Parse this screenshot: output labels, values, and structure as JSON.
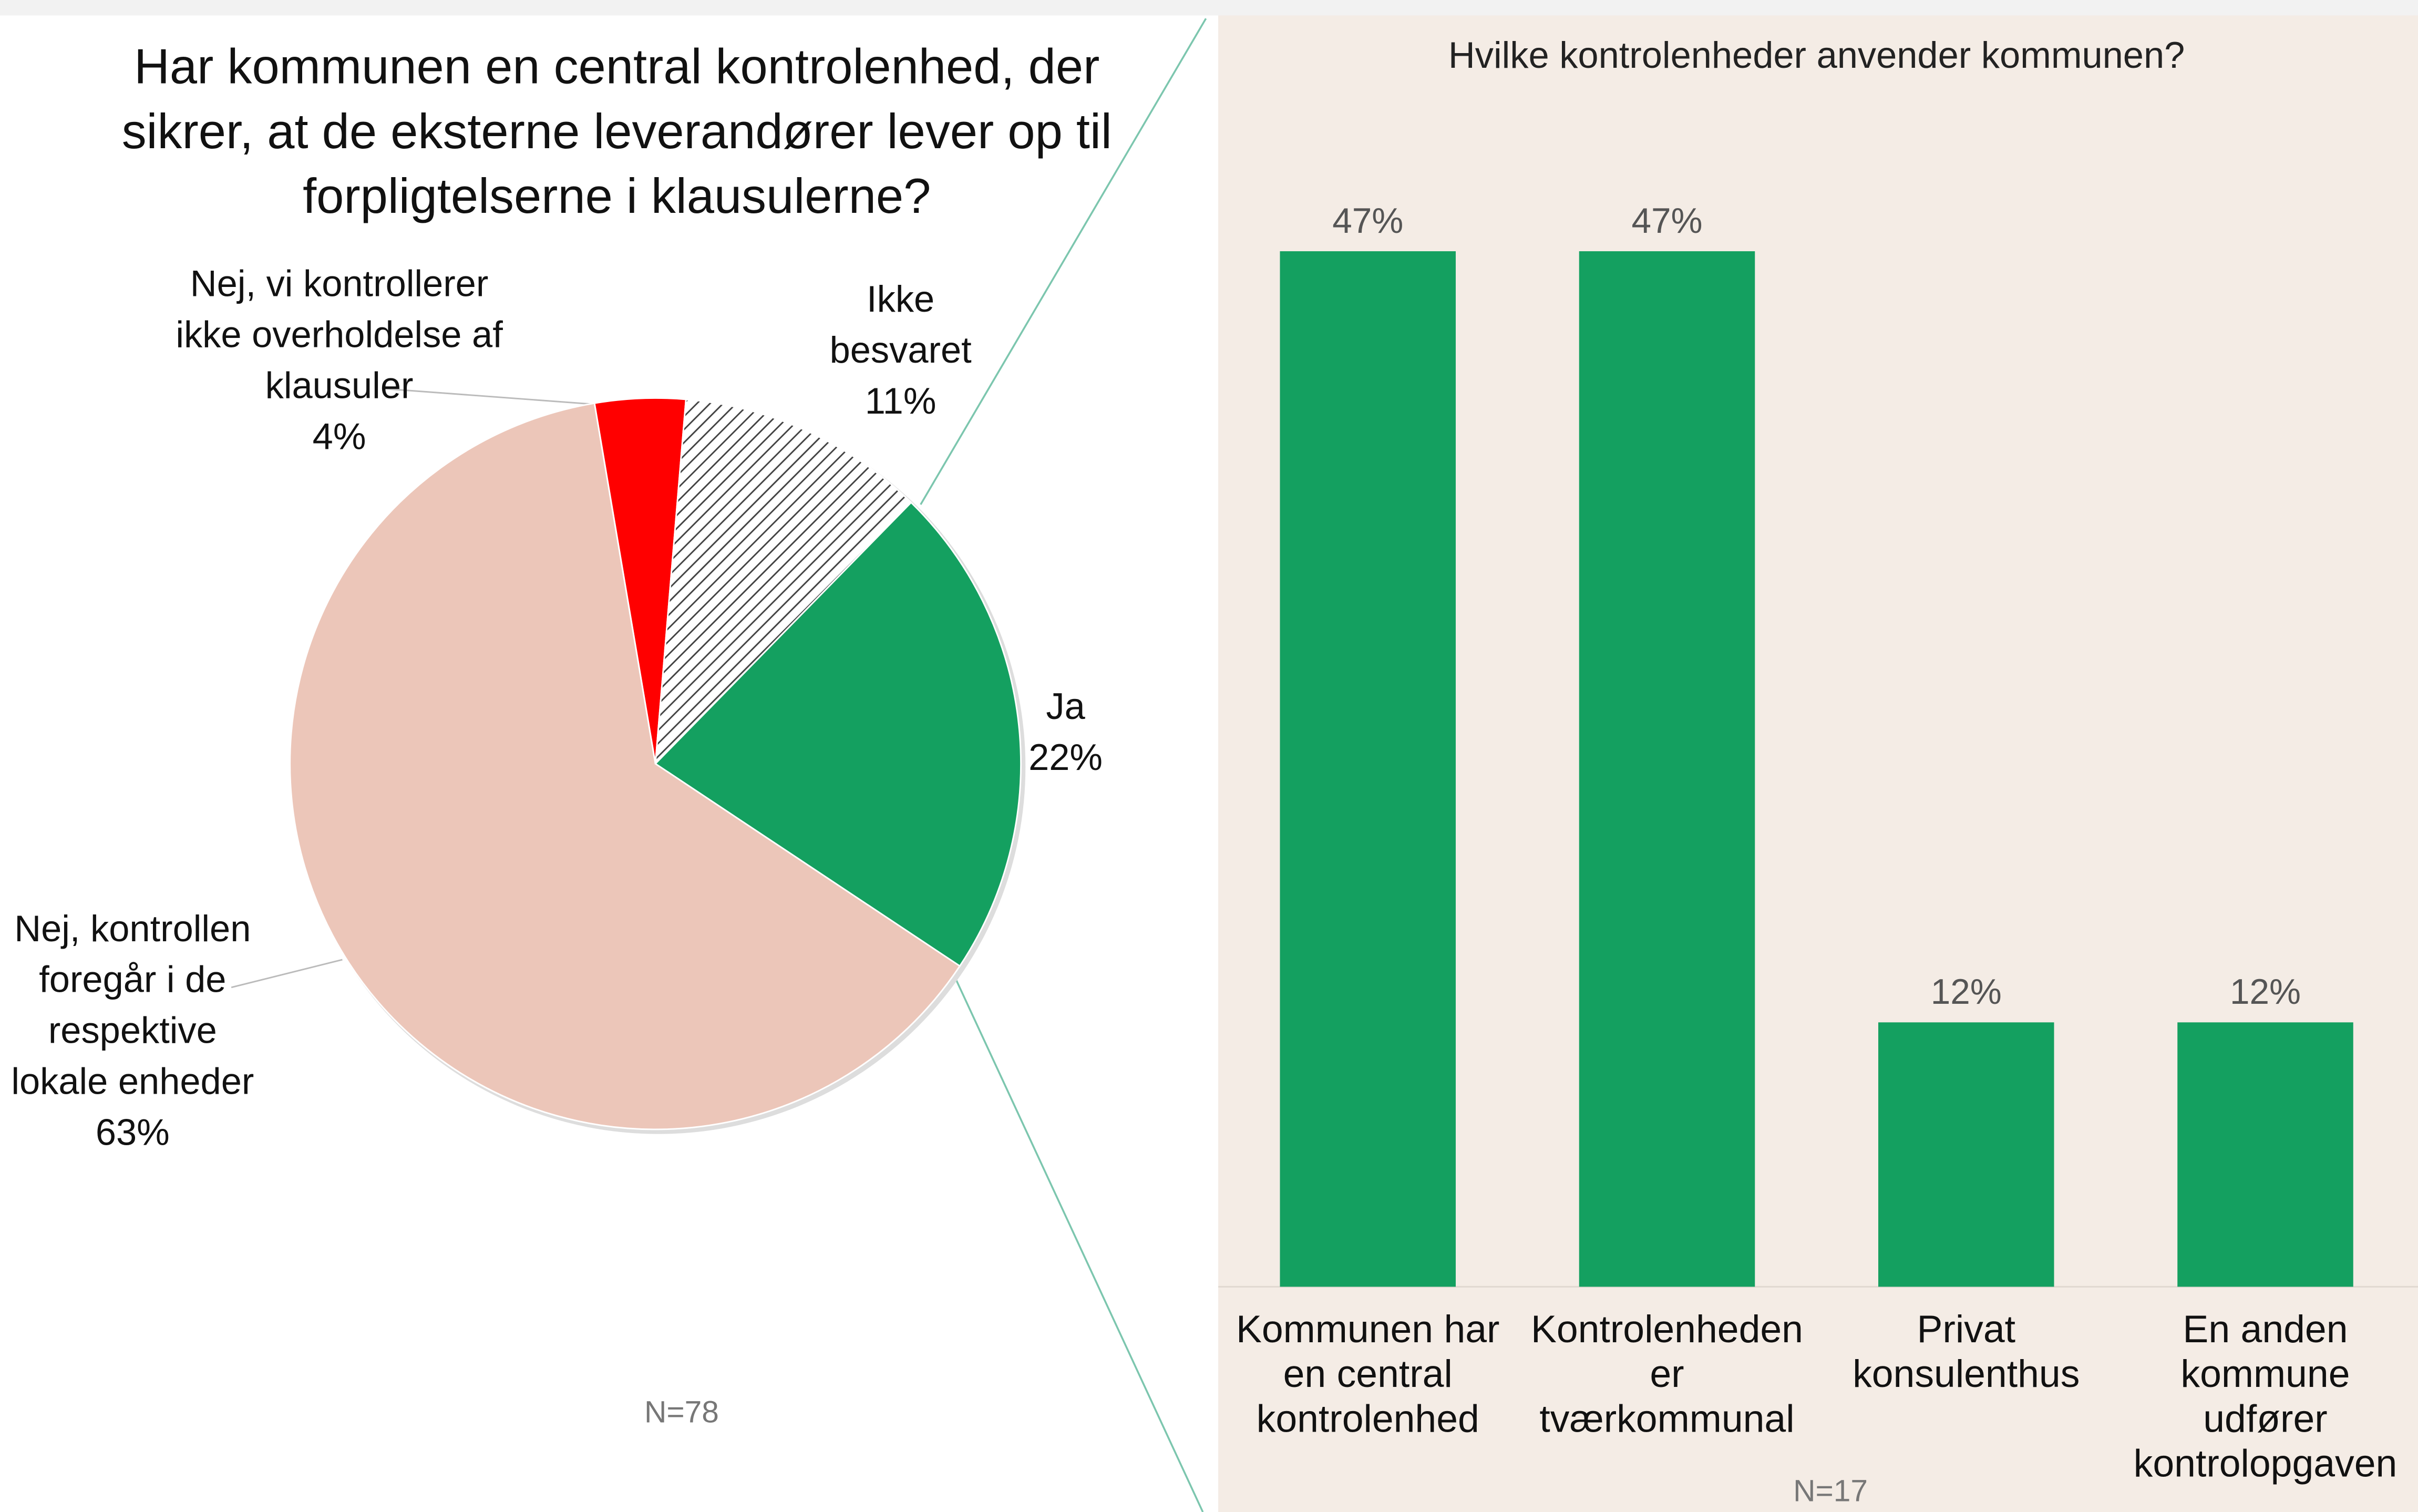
{
  "chart_data": [
    {
      "type": "pie",
      "title": "Har kommunen en central kontrolenhed, der sikrer, at de eksterne leverandører lever op til forpligtelserne i klausulerne?",
      "categories": [
        "Nej, vi kontrollerer ikke overholdelse af klausuler",
        "Ikke besvaret",
        "Ja",
        "Nej, kontrollen foregår i de respektive lokale enheder"
      ],
      "values": [
        4,
        11,
        22,
        63
      ],
      "value_labels": [
        "4%",
        "11%",
        "22%",
        "63%"
      ],
      "colors": [
        "#ff0000",
        "#444444",
        "#14a060",
        "#ecc6b9"
      ],
      "hatched": [
        false,
        true,
        false,
        false
      ],
      "note": "N=78"
    },
    {
      "type": "bar",
      "title": "Hvilke kontrolenheder anvender kommunen?",
      "categories": [
        "Kommunen har en central kontrolenhed",
        "Kontrolenheden er tværkommunal",
        "Privat konsulenthus",
        "En anden kommune udfører kontrolopgaven"
      ],
      "values": [
        47,
        47,
        12,
        12
      ],
      "value_labels": [
        "47%",
        "47%",
        "12%",
        "12%"
      ],
      "color": "#14a060",
      "ylim": [
        0,
        50
      ],
      "note": "N=17"
    }
  ]
}
